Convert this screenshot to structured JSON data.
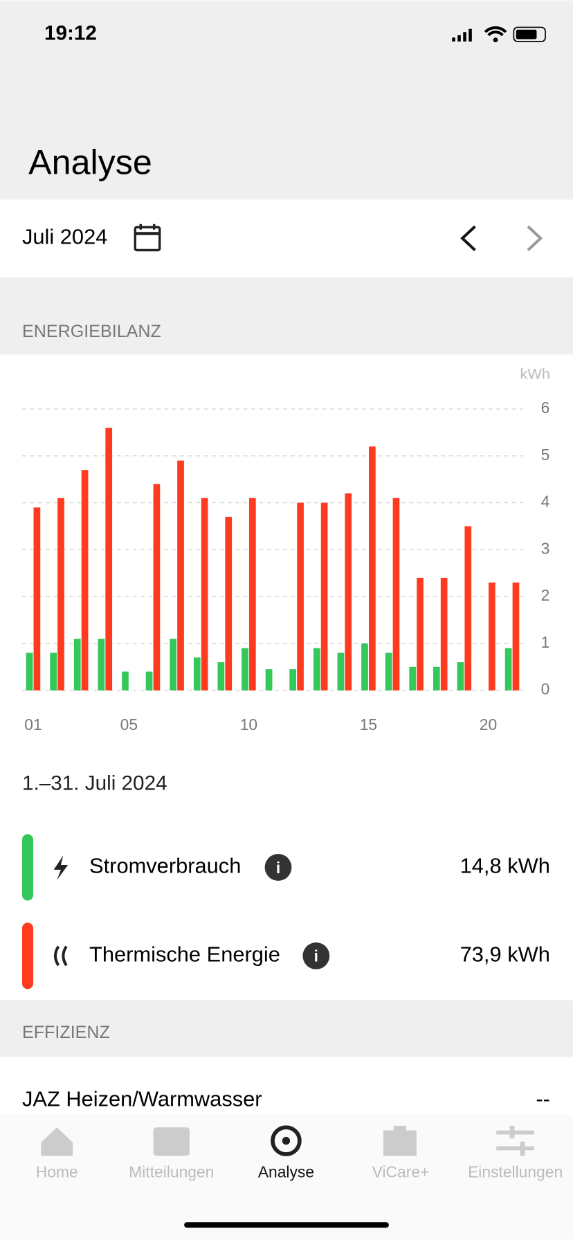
{
  "status_time": "19:12",
  "title": "Analyse",
  "month": "Juli 2024",
  "section_energy": "ENERGIEBILANZ",
  "chart_data": {
    "type": "bar",
    "y_unit": "kWh",
    "categories": [
      "01",
      null,
      null,
      null,
      "05",
      null,
      null,
      null,
      null,
      "10",
      null,
      null,
      null,
      null,
      "15",
      null,
      null,
      null,
      null,
      "20",
      null
    ],
    "series": [
      {
        "name": "Stromverbrauch",
        "color": "#34c759",
        "values": [
          0.8,
          0.8,
          1.1,
          1.1,
          0.4,
          0.4,
          1.1,
          0.7,
          0.6,
          0.9,
          0.45,
          0.45,
          0.9,
          0.8,
          1.0,
          0.8,
          0.5,
          0.5,
          0.6,
          0,
          0.9
        ]
      },
      {
        "name": "Thermische Energie",
        "color": "#ff3b1f",
        "values": [
          3.9,
          4.1,
          4.7,
          5.6,
          0,
          4.4,
          4.9,
          4.1,
          3.7,
          4.1,
          0,
          4.0,
          4.0,
          4.2,
          5.2,
          4.1,
          2.4,
          2.4,
          3.5,
          2.3,
          2.3
        ]
      }
    ],
    "ylim": [
      0,
      6
    ],
    "yticks": [
      0,
      1,
      2,
      3,
      4,
      5,
      6
    ],
    "grid": true
  },
  "period": "1.–31. Juli 2024",
  "totals": [
    "14,8 kWh",
    "73,9 kWh"
  ],
  "section_efficiency": "EFFIZIENZ",
  "jaz": {
    "label": "JAZ Heizen/Warmwasser",
    "value": "--"
  },
  "tabs": [
    "Home",
    "Mitteilungen",
    "Analyse",
    "ViCare+",
    "Einstellungen"
  ]
}
